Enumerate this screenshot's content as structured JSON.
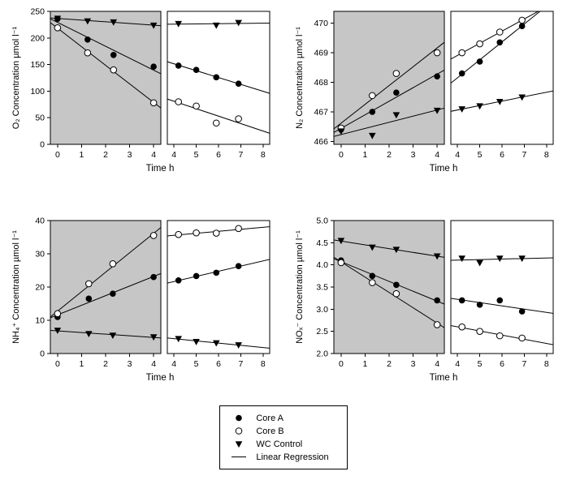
{
  "colors": {
    "panel_bg": "#c6c6c6",
    "marker": "#000000",
    "line": "#000000",
    "background": "#ffffff"
  },
  "legend": {
    "items": [
      {
        "label": "Core A",
        "marker": "circle-filled"
      },
      {
        "label": "Core B",
        "marker": "circle-open"
      },
      {
        "label": "WC Control",
        "marker": "triangle-filled"
      },
      {
        "label": "Linear Regression",
        "marker": "line"
      }
    ]
  },
  "chart_data": [
    {
      "id": "o2",
      "type": "scatter",
      "ylabel": "O₂ Concentration µmol l⁻¹",
      "xlabel": "Time h",
      "ylim": [
        0,
        250
      ],
      "yticks": [
        0,
        50,
        100,
        150,
        200,
        250
      ],
      "ytick_labels": [
        "0",
        "50",
        "100",
        "150",
        "200",
        "250"
      ],
      "subpanels": [
        {
          "bg": "#c6c6c6",
          "xlim": [
            -0.3,
            4.3
          ],
          "xticks": [
            0,
            1,
            2,
            3,
            4
          ],
          "series": [
            {
              "name": "Core A",
              "marker": "circle-filled",
              "points": [
                [
                  0,
                  236
                ],
                [
                  1.25,
                  197
                ],
                [
                  2.33,
                  168
                ],
                [
                  4,
                  146
                ]
              ]
            },
            {
              "name": "Core B",
              "marker": "circle-open",
              "points": [
                [
                  0,
                  219
                ],
                [
                  1.25,
                  172
                ],
                [
                  2.33,
                  140
                ],
                [
                  4,
                  78
                ]
              ]
            },
            {
              "name": "WC Control",
              "marker": "triangle-filled",
              "points": [
                [
                  0,
                  237
                ],
                [
                  1.25,
                  232
                ],
                [
                  2.33,
                  230
                ],
                [
                  4,
                  224
                ]
              ]
            }
          ]
        },
        {
          "bg": "#ffffff",
          "xlim": [
            3.7,
            8.3
          ],
          "xticks": [
            4,
            5,
            6,
            7,
            8
          ],
          "series": [
            {
              "name": "Core A",
              "marker": "circle-filled",
              "points": [
                [
                  4.2,
                  148
                ],
                [
                  5,
                  140
                ],
                [
                  5.9,
                  126
                ],
                [
                  6.9,
                  114
                ]
              ]
            },
            {
              "name": "Core B",
              "marker": "circle-open",
              "points": [
                [
                  4.2,
                  80
                ],
                [
                  5,
                  72
                ],
                [
                  5.9,
                  40
                ],
                [
                  6.9,
                  48
                ]
              ]
            },
            {
              "name": "WC Control",
              "marker": "triangle-filled",
              "points": [
                [
                  4.2,
                  227
                ],
                [
                  5.9,
                  224
                ],
                [
                  6.9,
                  229
                ]
              ]
            }
          ]
        }
      ]
    },
    {
      "id": "n2",
      "type": "scatter",
      "ylabel": "N₂ Concentration µmol l⁻¹",
      "xlabel": "Time h",
      "ylim": [
        465.9,
        470.4
      ],
      "yticks": [
        466,
        467,
        468,
        469,
        470
      ],
      "ytick_labels": [
        "466",
        "467",
        "468",
        "469",
        "470"
      ],
      "subpanels": [
        {
          "bg": "#c6c6c6",
          "xlim": [
            -0.3,
            4.3
          ],
          "xticks": [
            0,
            1,
            2,
            3,
            4
          ],
          "series": [
            {
              "name": "Core A",
              "marker": "circle-filled",
              "points": [
                [
                  0,
                  466.4
                ],
                [
                  1.3,
                  467.0
                ],
                [
                  2.3,
                  467.65
                ],
                [
                  4,
                  468.2
                ]
              ]
            },
            {
              "name": "Core B",
              "marker": "circle-open",
              "points": [
                [
                  0,
                  466.45
                ],
                [
                  1.3,
                  467.55
                ],
                [
                  2.3,
                  468.3
                ],
                [
                  4,
                  469.0
                ]
              ]
            },
            {
              "name": "WC Control",
              "marker": "triangle-filled",
              "points": [
                [
                  0,
                  466.35
                ],
                [
                  1.3,
                  466.2
                ],
                [
                  2.3,
                  466.9
                ],
                [
                  4,
                  467.05
                ]
              ]
            }
          ]
        },
        {
          "bg": "#ffffff",
          "xlim": [
            3.7,
            8.3
          ],
          "xticks": [
            4,
            5,
            6,
            7,
            8
          ],
          "series": [
            {
              "name": "Core A",
              "marker": "circle-filled",
              "points": [
                [
                  4.2,
                  468.3
                ],
                [
                  5,
                  468.7
                ],
                [
                  5.9,
                  469.35
                ],
                [
                  6.9,
                  469.9
                ]
              ]
            },
            {
              "name": "Core B",
              "marker": "circle-open",
              "points": [
                [
                  4.2,
                  469.0
                ],
                [
                  5,
                  469.3
                ],
                [
                  5.9,
                  469.7
                ],
                [
                  6.9,
                  470.1
                ]
              ]
            },
            {
              "name": "WC Control",
              "marker": "triangle-filled",
              "points": [
                [
                  4.2,
                  467.1
                ],
                [
                  5,
                  467.2
                ],
                [
                  5.9,
                  467.35
                ],
                [
                  6.9,
                  467.5
                ]
              ]
            }
          ]
        }
      ]
    },
    {
      "id": "nh4",
      "type": "scatter",
      "ylabel": "NH₄⁺ Concentration µmol l⁻¹",
      "xlabel": "Time h",
      "ylim": [
        0,
        40
      ],
      "yticks": [
        0,
        10,
        20,
        30,
        40
      ],
      "ytick_labels": [
        "0",
        "10",
        "20",
        "30",
        "40"
      ],
      "subpanels": [
        {
          "bg": "#c6c6c6",
          "xlim": [
            -0.3,
            4.3
          ],
          "xticks": [
            0,
            1,
            2,
            3,
            4
          ],
          "series": [
            {
              "name": "Core A",
              "marker": "circle-filled",
              "points": [
                [
                  0,
                  11
                ],
                [
                  1.3,
                  16.5
                ],
                [
                  2.3,
                  18
                ],
                [
                  4,
                  23
                ]
              ]
            },
            {
              "name": "Core B",
              "marker": "circle-open",
              "points": [
                [
                  0,
                  12
                ],
                [
                  1.3,
                  21
                ],
                [
                  2.3,
                  27
                ],
                [
                  4,
                  35.5
                ]
              ]
            },
            {
              "name": "WC Control",
              "marker": "triangle-filled",
              "points": [
                [
                  0,
                  7
                ],
                [
                  1.3,
                  6
                ],
                [
                  2.3,
                  5.5
                ],
                [
                  4,
                  5
                ]
              ]
            }
          ]
        },
        {
          "bg": "#ffffff",
          "xlim": [
            3.7,
            8.3
          ],
          "xticks": [
            4,
            5,
            6,
            7,
            8
          ],
          "series": [
            {
              "name": "Core A",
              "marker": "circle-filled",
              "points": [
                [
                  4.2,
                  22
                ],
                [
                  5,
                  23.3
                ],
                [
                  5.9,
                  24.3
                ],
                [
                  6.9,
                  26.3
                ]
              ]
            },
            {
              "name": "Core B",
              "marker": "circle-open",
              "points": [
                [
                  4.2,
                  35.8
                ],
                [
                  5,
                  36.3
                ],
                [
                  5.9,
                  36.2
                ],
                [
                  6.9,
                  37.6
                ]
              ]
            },
            {
              "name": "WC Control",
              "marker": "triangle-filled",
              "points": [
                [
                  4.2,
                  4.5
                ],
                [
                  5,
                  3.6
                ],
                [
                  5.9,
                  3.2
                ],
                [
                  6.9,
                  2.6
                ]
              ]
            }
          ]
        }
      ]
    },
    {
      "id": "nox",
      "type": "scatter",
      "ylabel": "NOₓ⁻ Concentration µmol l⁻¹",
      "xlabel": "Time h",
      "ylim": [
        2.0,
        5.0
      ],
      "yticks": [
        2.0,
        2.5,
        3.0,
        3.5,
        4.0,
        4.5,
        5.0
      ],
      "ytick_labels": [
        "2.0",
        "2.5",
        "3.0",
        "3.5",
        "4.0",
        "4.5",
        "5.0"
      ],
      "subpanels": [
        {
          "bg": "#c6c6c6",
          "xlim": [
            -0.3,
            4.3
          ],
          "xticks": [
            0,
            1,
            2,
            3,
            4
          ],
          "series": [
            {
              "name": "Core A",
              "marker": "circle-filled",
              "points": [
                [
                  0,
                  4.1
                ],
                [
                  1.3,
                  3.75
                ],
                [
                  2.3,
                  3.55
                ],
                [
                  4,
                  3.2
                ]
              ]
            },
            {
              "name": "Core B",
              "marker": "circle-open",
              "points": [
                [
                  0,
                  4.05
                ],
                [
                  1.3,
                  3.6
                ],
                [
                  2.3,
                  3.35
                ],
                [
                  4,
                  2.65
                ]
              ]
            },
            {
              "name": "WC Control",
              "marker": "triangle-filled",
              "points": [
                [
                  0,
                  4.55
                ],
                [
                  1.3,
                  4.4
                ],
                [
                  2.3,
                  4.35
                ],
                [
                  4,
                  4.2
                ]
              ]
            }
          ]
        },
        {
          "bg": "#ffffff",
          "xlim": [
            3.7,
            8.3
          ],
          "xticks": [
            4,
            5,
            6,
            7,
            8
          ],
          "series": [
            {
              "name": "Core A",
              "marker": "circle-filled",
              "points": [
                [
                  4.2,
                  3.2
                ],
                [
                  5,
                  3.1
                ],
                [
                  5.9,
                  3.2
                ],
                [
                  6.9,
                  2.95
                ]
              ]
            },
            {
              "name": "Core B",
              "marker": "circle-open",
              "points": [
                [
                  4.2,
                  2.6
                ],
                [
                  5,
                  2.5
                ],
                [
                  5.9,
                  2.4
                ],
                [
                  6.9,
                  2.35
                ]
              ]
            },
            {
              "name": "WC Control",
              "marker": "triangle-filled",
              "points": [
                [
                  4.2,
                  4.15
                ],
                [
                  5,
                  4.05
                ],
                [
                  5.9,
                  4.15
                ],
                [
                  6.9,
                  4.15
                ]
              ]
            }
          ]
        }
      ]
    }
  ]
}
